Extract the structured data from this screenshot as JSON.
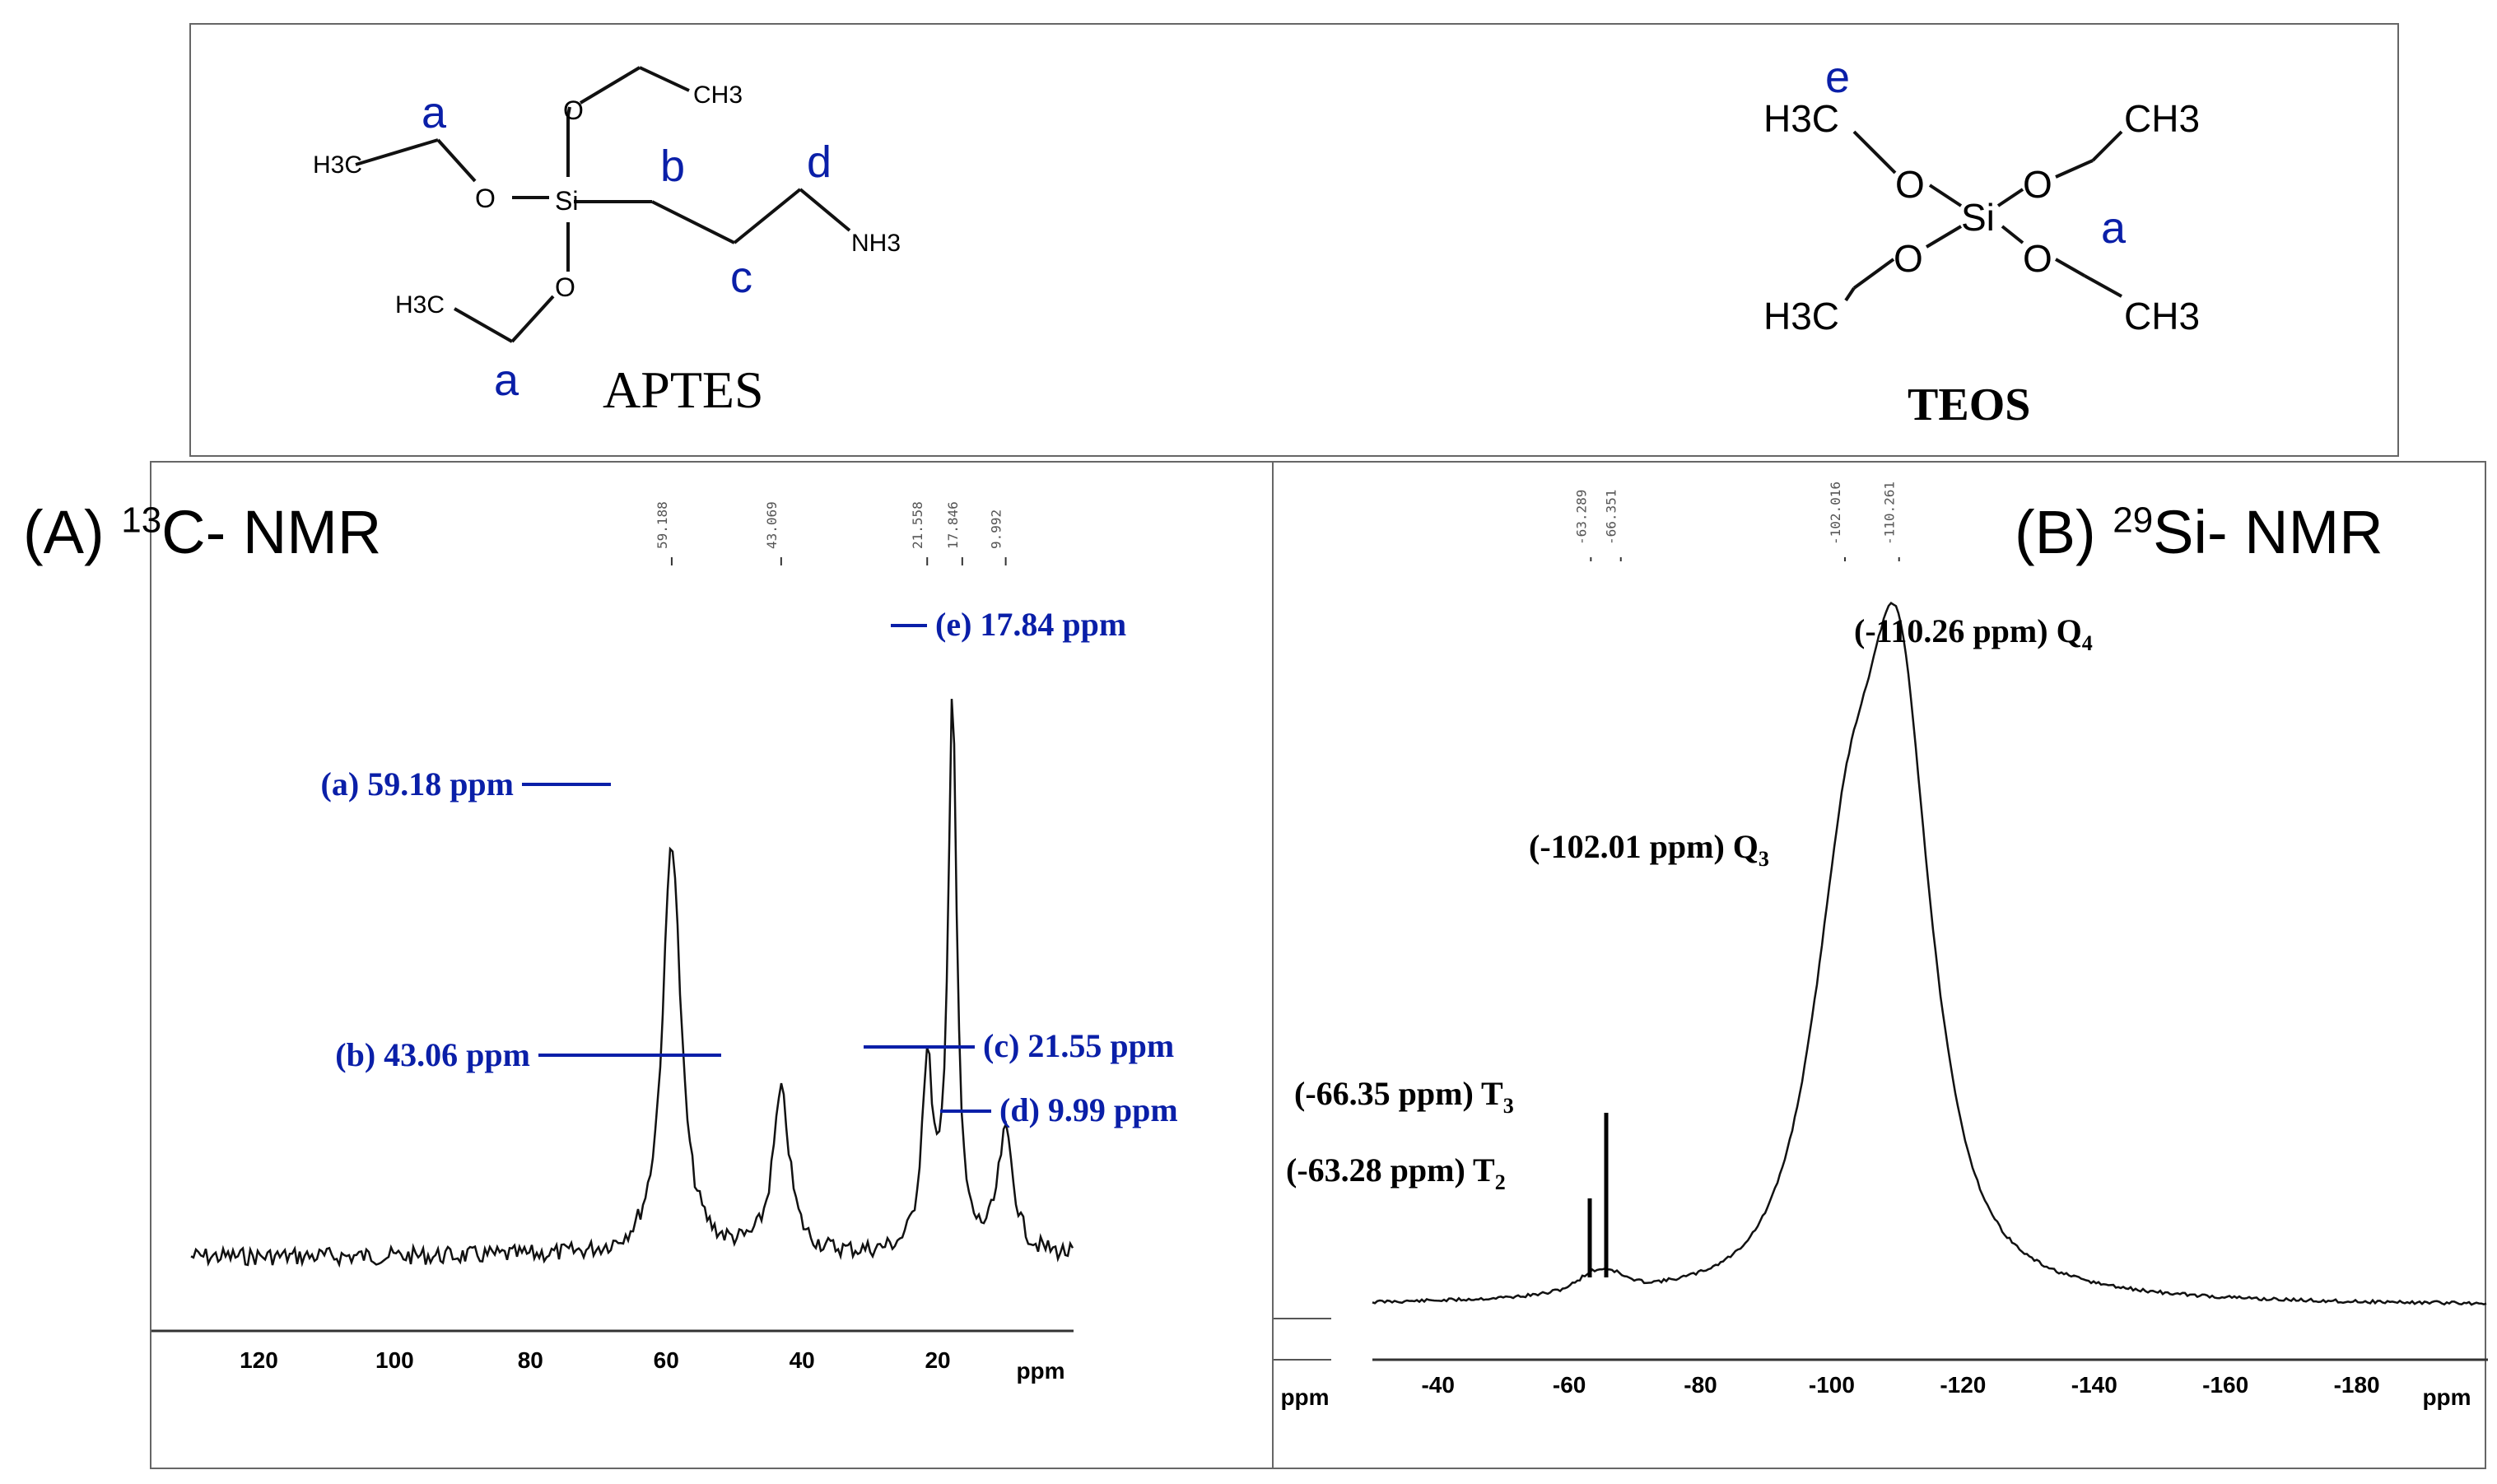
{
  "structures": {
    "aptes": {
      "name": "APTES",
      "atoms": {
        "ch3_top": "CH3",
        "h3c_left": "H3C",
        "h3c_bottom": "H3C",
        "o_top": "O",
        "o_left": "O",
        "o_bottom": "O",
        "si": "Si",
        "nh3": "NH3"
      },
      "labels": {
        "a_top": "a",
        "b": "b",
        "d": "d",
        "c": "c",
        "a_bottom": "a"
      }
    },
    "teos": {
      "name": "TEOS",
      "atoms": {
        "h3c_tl": "H3C",
        "ch3_tr": "CH3",
        "h3c_bl": "H3C",
        "ch3_br": "CH3",
        "o1": "O",
        "o2": "O",
        "o3": "O",
        "o4": "O",
        "si": "Si"
      },
      "labels": {
        "e": "e",
        "a": "a"
      }
    }
  },
  "panel_a": {
    "letter": "(A)",
    "isotope": "13",
    "title_rest": "C- NMR",
    "peak_ticks": [
      "59.188",
      "43.069",
      "21.558",
      "17.846",
      "9.992"
    ],
    "annotations": {
      "a": "(a) 59.18 ppm",
      "b": "(b) 43.06 ppm",
      "c": "(c) 21.55 ppm",
      "d": "(d) 9.99 ppm",
      "e": "(e) 17.84 ppm"
    }
  },
  "panel_b": {
    "letter": "(B)",
    "isotope": "29",
    "title_rest": "Si- NMR",
    "peak_ticks": [
      "-63.289",
      "-66.351",
      "-102.016",
      "-110.261"
    ],
    "annotations": {
      "q4": {
        "text": "(-110.26 ppm) Q",
        "sub": "4"
      },
      "q3": {
        "text": "(-102.01 ppm) Q",
        "sub": "3"
      },
      "t3": {
        "text": "(-66.35 ppm) T",
        "sub": "3"
      },
      "t2": {
        "text": "(-63.28 ppm) T",
        "sub": "2"
      }
    },
    "stub_unit": "ppm"
  },
  "chart_data": [
    {
      "type": "line",
      "xlim": [
        130,
        0
      ],
      "x_ticks": [
        120,
        100,
        80,
        60,
        40,
        20
      ],
      "x_tick_labels": [
        "120",
        "100",
        "80",
        "60",
        "40",
        "20"
      ],
      "xlabel": "ppm",
      "peaks": [
        {
          "label": "a",
          "ppm": 59.18,
          "height": 0.7,
          "width": 1.6
        },
        {
          "label": "b",
          "ppm": 43.06,
          "height": 0.27,
          "width": 1.5
        },
        {
          "label": "c",
          "ppm": 21.55,
          "height": 0.31,
          "width": 1.0
        },
        {
          "label": "e",
          "ppm": 17.84,
          "height": 0.94,
          "width": 0.75
        },
        {
          "label": "d",
          "ppm": 9.99,
          "height": 0.2,
          "width": 1.4
        }
      ]
    },
    {
      "type": "line",
      "xlim": [
        -30,
        -200
      ],
      "x_ticks": [
        -40,
        -60,
        -80,
        -100,
        -120,
        -140,
        -160,
        -180
      ],
      "x_tick_labels": [
        "-40",
        "-60",
        "-80",
        "-100",
        "-120",
        "-140",
        "-160",
        "-180"
      ],
      "xlabel": "ppm",
      "peaks": [
        {
          "label": "T2",
          "ppm": -63.28,
          "height": 0.03,
          "width": 3
        },
        {
          "label": "T3",
          "ppm": -66.35,
          "height": 0.03,
          "width": 3
        },
        {
          "label": "Q3",
          "ppm": -102.01,
          "height": 0.45,
          "width": 6
        },
        {
          "label": "Q4",
          "ppm": -110.26,
          "height": 0.95,
          "width": 6
        }
      ]
    }
  ]
}
